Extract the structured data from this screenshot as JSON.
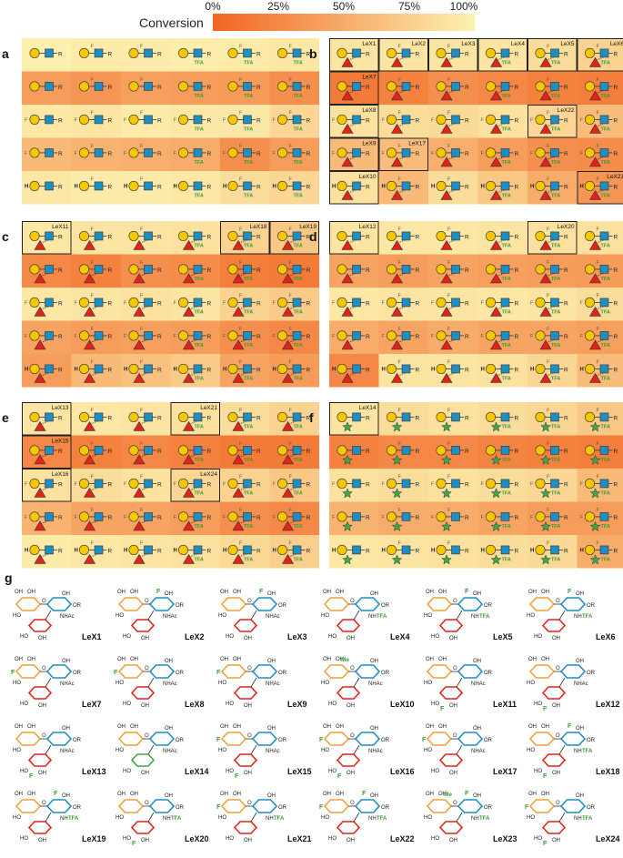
{
  "legend": {
    "title": "Conversion",
    "ticks": [
      "0%",
      "25%",
      "50%",
      "75%",
      "100%"
    ],
    "color_low": "#f26522",
    "color_high": "#fdf2b0"
  },
  "colors": {
    "galactose": "#f7c700",
    "glcnac": "#1f8fc1",
    "fucose": "#e2231a",
    "arabinose": "#3ea849",
    "fluoro": "#5a5a5a",
    "tfa": "#3a9a3a",
    "highlight_border": "#222222"
  },
  "icons": {
    "gal": "yellow-circle-galactose-icon",
    "glcnac": "blue-square-glcnac-icon",
    "fuc": "red-triangle-fucose-icon",
    "ara": "green-star-arabinose-icon"
  },
  "symbol_text": {
    "reducing_end": "R",
    "fluoro": "F",
    "hydrogen": "H",
    "tfa": "TFA"
  },
  "panel_a_b_c_d_e_f_rows": "5 rows x 6 columns of substrate/product symbol cells per panel; cell shading encodes percent conversion",
  "panels": [
    {
      "label": "a",
      "acceptor": "none",
      "conversion": [
        [
          98,
          95,
          95,
          97,
          95,
          92
        ],
        [
          40,
          35,
          42,
          40,
          38,
          30
        ],
        [
          92,
          90,
          95,
          93,
          93,
          80
        ],
        [
          60,
          55,
          52,
          50,
          30,
          40
        ],
        [
          93,
          95,
          95,
          92,
          85,
          80
        ]
      ],
      "highlights": []
    },
    {
      "label": "b",
      "acceptor": "fucose",
      "conversion": [
        [
          90,
          90,
          90,
          90,
          85,
          78
        ],
        [
          15,
          20,
          30,
          25,
          20,
          18
        ],
        [
          88,
          85,
          82,
          88,
          80,
          62
        ],
        [
          60,
          62,
          52,
          40,
          30,
          28
        ],
        [
          88,
          60,
          85,
          70,
          50,
          35
        ]
      ],
      "highlights": [
        {
          "row": 0,
          "col": 0,
          "label": "LeX1"
        },
        {
          "row": 0,
          "col": 1,
          "label": "LeX2"
        },
        {
          "row": 0,
          "col": 2,
          "label": "LeX3"
        },
        {
          "row": 0,
          "col": 3,
          "label": "LeX4"
        },
        {
          "row": 0,
          "col": 4,
          "label": "LeX5"
        },
        {
          "row": 0,
          "col": 5,
          "label": "LeX6"
        },
        {
          "row": 1,
          "col": 0,
          "label": "LeX7"
        },
        {
          "row": 2,
          "col": 0,
          "label": "LeX8"
        },
        {
          "row": 2,
          "col": 4,
          "label": "LeX22"
        },
        {
          "row": 3,
          "col": 0,
          "label": "LeX9"
        },
        {
          "row": 3,
          "col": 1,
          "label": "LeX17"
        },
        {
          "row": 4,
          "col": 0,
          "label": "LeX10"
        },
        {
          "row": 4,
          "col": 5,
          "label": "LeX23"
        }
      ]
    },
    {
      "label": "c",
      "acceptor": "fucose",
      "conversion": [
        [
          92,
          90,
          90,
          88,
          78,
          70
        ],
        [
          25,
          20,
          30,
          28,
          18,
          15
        ],
        [
          92,
          90,
          88,
          90,
          78,
          72
        ],
        [
          45,
          40,
          42,
          40,
          30,
          25
        ],
        [
          40,
          60,
          65,
          72,
          45,
          38
        ]
      ],
      "highlights": [
        {
          "row": 0,
          "col": 0,
          "label": "LeX11"
        },
        {
          "row": 0,
          "col": 4,
          "label": "LeX18"
        },
        {
          "row": 0,
          "col": 5,
          "label": "LeX19"
        }
      ]
    },
    {
      "label": "d",
      "acceptor": "fucose",
      "conversion": [
        [
          90,
          92,
          92,
          90,
          88,
          88
        ],
        [
          45,
          40,
          45,
          42,
          40,
          38
        ],
        [
          92,
          90,
          90,
          92,
          90,
          85
        ],
        [
          50,
          45,
          50,
          45,
          45,
          42
        ],
        [
          25,
          90,
          90,
          88,
          80,
          62
        ]
      ],
      "highlights": [
        {
          "row": 0,
          "col": 0,
          "label": "LeX12"
        },
        {
          "row": 0,
          "col": 4,
          "label": "LeX20"
        }
      ]
    },
    {
      "label": "e",
      "acceptor": "fucose",
      "conversion": [
        [
          90,
          92,
          90,
          88,
          85,
          78
        ],
        [
          25,
          20,
          25,
          20,
          15,
          15
        ],
        [
          88,
          85,
          88,
          80,
          78,
          70
        ],
        [
          55,
          45,
          45,
          40,
          30,
          25
        ],
        [
          95,
          92,
          90,
          88,
          82,
          75
        ]
      ],
      "highlights": [
        {
          "row": 0,
          "col": 0,
          "label": "LeX13"
        },
        {
          "row": 0,
          "col": 3,
          "label": "LeX21"
        },
        {
          "row": 1,
          "col": 0,
          "label": "LeX15"
        },
        {
          "row": 2,
          "col": 0,
          "label": "LeX16"
        },
        {
          "row": 2,
          "col": 3,
          "label": "LeX24"
        }
      ]
    },
    {
      "label": "f",
      "acceptor": "arabinose",
      "conversion": [
        [
          90,
          85,
          88,
          85,
          80,
          70
        ],
        [
          20,
          25,
          25,
          22,
          20,
          18
        ],
        [
          88,
          85,
          88,
          85,
          80,
          60
        ],
        [
          55,
          50,
          50,
          45,
          40,
          40
        ],
        [
          92,
          90,
          88,
          85,
          82,
          50
        ]
      ],
      "highlights": [
        {
          "row": 0,
          "col": 0,
          "label": "LeX14"
        }
      ]
    }
  ],
  "panel_g": {
    "label": "g",
    "ring_labels": {
      "nhac": "NHAc",
      "nhtfa_nh": "NH",
      "nhtfa_tfa": "TFA",
      "or": "OR",
      "oh": "OH",
      "ho": "HO",
      "me": "Me",
      "o": "O"
    },
    "compounds": [
      {
        "label": "LeX1",
        "f_gal": false,
        "f_glc": false,
        "tfa": false,
        "me": false,
        "f_fuc": false,
        "ara": false
      },
      {
        "label": "LeX2",
        "f_gal": false,
        "f_glc": true,
        "tfa": false,
        "me": false,
        "f_fuc": false,
        "ara": false
      },
      {
        "label": "LeX3",
        "f_gal": false,
        "f_glc": true,
        "tfa": false,
        "me": false,
        "f_fuc": false,
        "ara": false
      },
      {
        "label": "LeX4",
        "f_gal": false,
        "f_glc": false,
        "tfa": true,
        "me": false,
        "f_fuc": false,
        "ara": false
      },
      {
        "label": "LeX5",
        "f_gal": false,
        "f_glc": true,
        "tfa": true,
        "me": false,
        "f_fuc": false,
        "ara": false
      },
      {
        "label": "LeX6",
        "f_gal": false,
        "f_glc": true,
        "tfa": true,
        "me": false,
        "f_fuc": false,
        "ara": false
      },
      {
        "label": "LeX7",
        "f_gal": true,
        "f_glc": false,
        "tfa": false,
        "me": false,
        "f_fuc": false,
        "ara": false
      },
      {
        "label": "LeX8",
        "f_gal": true,
        "f_glc": false,
        "tfa": false,
        "me": false,
        "f_fuc": false,
        "ara": false
      },
      {
        "label": "LeX9",
        "f_gal": true,
        "f_glc": false,
        "tfa": false,
        "me": false,
        "f_fuc": false,
        "ara": false
      },
      {
        "label": "LeX10",
        "f_gal": false,
        "f_glc": false,
        "tfa": false,
        "me": true,
        "f_fuc": false,
        "ara": false
      },
      {
        "label": "LeX11",
        "f_gal": false,
        "f_glc": false,
        "tfa": false,
        "me": false,
        "f_fuc": true,
        "ara": false
      },
      {
        "label": "LeX12",
        "f_gal": false,
        "f_glc": false,
        "tfa": false,
        "me": false,
        "f_fuc": true,
        "ara": false
      },
      {
        "label": "LeX13",
        "f_gal": false,
        "f_glc": false,
        "tfa": false,
        "me": false,
        "f_fuc": true,
        "ara": false
      },
      {
        "label": "LeX14",
        "f_gal": false,
        "f_glc": false,
        "tfa": false,
        "me": false,
        "f_fuc": false,
        "ara": true
      },
      {
        "label": "LeX15",
        "f_gal": true,
        "f_glc": false,
        "tfa": false,
        "me": false,
        "f_fuc": true,
        "ara": false
      },
      {
        "label": "LeX16",
        "f_gal": true,
        "f_glc": false,
        "tfa": false,
        "me": false,
        "f_fuc": true,
        "ara": false
      },
      {
        "label": "LeX17",
        "f_gal": true,
        "f_glc": false,
        "tfa": false,
        "me": false,
        "f_fuc": false,
        "ara": false
      },
      {
        "label": "LeX18",
        "f_gal": false,
        "f_glc": true,
        "tfa": true,
        "me": false,
        "f_fuc": true,
        "ara": false
      },
      {
        "label": "LeX19",
        "f_gal": false,
        "f_glc": true,
        "tfa": true,
        "me": false,
        "f_fuc": false,
        "ara": false
      },
      {
        "label": "LeX20",
        "f_gal": false,
        "f_glc": false,
        "tfa": true,
        "me": false,
        "f_fuc": true,
        "ara": false
      },
      {
        "label": "LeX21",
        "f_gal": true,
        "f_glc": false,
        "tfa": true,
        "me": false,
        "f_fuc": false,
        "ara": false
      },
      {
        "label": "LeX22",
        "f_gal": true,
        "f_glc": true,
        "tfa": true,
        "me": false,
        "f_fuc": false,
        "ara": false
      },
      {
        "label": "LeX23",
        "f_gal": false,
        "f_glc": true,
        "tfa": true,
        "me": true,
        "f_fuc": false,
        "ara": false
      },
      {
        "label": "LeX24",
        "f_gal": true,
        "f_glc": false,
        "tfa": true,
        "me": false,
        "f_fuc": true,
        "ara": false
      }
    ]
  }
}
